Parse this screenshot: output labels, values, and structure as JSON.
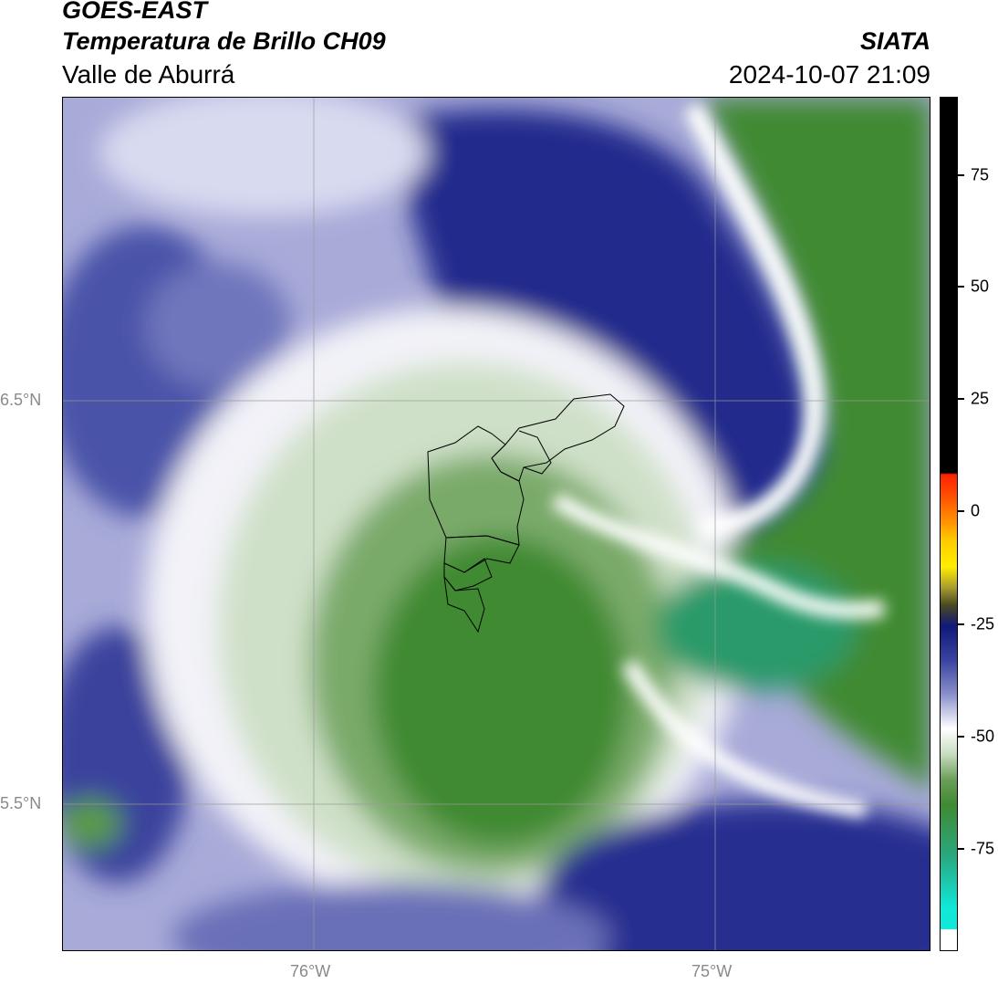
{
  "header": {
    "satellite": "GOES-EAST",
    "product": "Temperatura de Brillo CH09",
    "region": "Valle de Aburrá",
    "organization": "SIATA",
    "timestamp": "2024-10-07 21:09"
  },
  "map": {
    "lat_labels": [
      "6.5°N",
      "5.5°N"
    ],
    "lon_labels": [
      "76°W",
      "75°W"
    ],
    "gridlines": true
  },
  "colorbar": {
    "ticks": [
      "75",
      "50",
      "25",
      "0",
      "-25",
      "-50",
      "-75"
    ],
    "colors": {
      "black": "#000000",
      "red": "#ff2200",
      "orange": "#ff9900",
      "yellow": "#ffee00",
      "dark_olive": "#4a4a20",
      "navy": "#10187a",
      "blue": "#3a44a0",
      "lavender": "#b4b8e0",
      "white": "#ffffff",
      "pale_green": "#c8dcc0",
      "green": "#3f8a32",
      "teal": "#2aa880",
      "cyan": "#10e8d8"
    }
  }
}
